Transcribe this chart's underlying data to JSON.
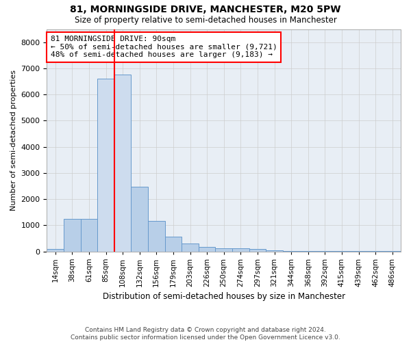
{
  "title_line1": "81, MORNINGSIDE DRIVE, MANCHESTER, M20 5PW",
  "title_line2": "Size of property relative to semi-detached houses in Manchester",
  "xlabel": "Distribution of semi-detached houses by size in Manchester",
  "ylabel": "Number of semi-detached properties",
  "bar_labels": [
    "14sqm",
    "38sqm",
    "61sqm",
    "85sqm",
    "108sqm",
    "132sqm",
    "156sqm",
    "179sqm",
    "203sqm",
    "226sqm",
    "250sqm",
    "274sqm",
    "297sqm",
    "321sqm",
    "344sqm",
    "368sqm",
    "392sqm",
    "415sqm",
    "439sqm",
    "462sqm",
    "486sqm"
  ],
  "bar_values": [
    90,
    1230,
    1250,
    6600,
    6750,
    2480,
    1170,
    560,
    310,
    165,
    120,
    110,
    100,
    40,
    25,
    15,
    10,
    5,
    5,
    5,
    5
  ],
  "bar_color": "#b8cfe8",
  "bar_edge_color": "#6699cc",
  "highlight_indices": [
    3,
    4
  ],
  "highlight_color": "#cddcee",
  "vline_x": 3.5,
  "vline_color": "red",
  "annotation_text_line1": "81 MORNINGSIDE DRIVE: 90sqm",
  "annotation_text_line2": "← 50% of semi-detached houses are smaller (9,721)",
  "annotation_text_line3": "48% of semi-detached houses are larger (9,183) →",
  "annotation_box_color": "white",
  "annotation_box_edge": "red",
  "ylim": [
    0,
    8500
  ],
  "yticks": [
    0,
    1000,
    2000,
    3000,
    4000,
    5000,
    6000,
    7000,
    8000
  ],
  "grid_color": "#cccccc",
  "bg_color": "#e8eef5",
  "footer_line1": "Contains HM Land Registry data © Crown copyright and database right 2024.",
  "footer_line2": "Contains public sector information licensed under the Open Government Licence v3.0."
}
